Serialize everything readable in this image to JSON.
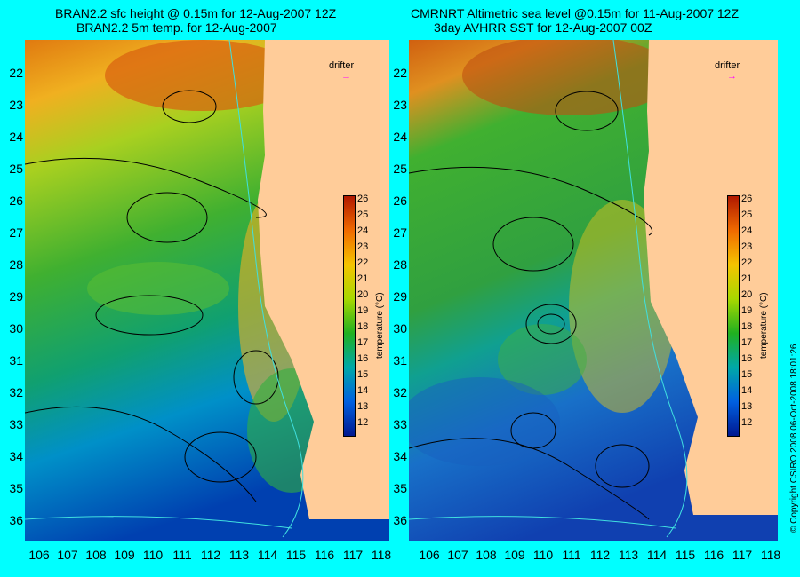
{
  "left": {
    "title_line1": "BRAN2.2 sfc height @ 0.15m for 12-Aug-2007 12Z",
    "title_line2": "BRAN2.2 5m temp. for 12-Aug-2007",
    "drifter_label": "drifter"
  },
  "right": {
    "title_line1": "CMRNRT Altimetric sea level  @0.15m  for 11-Aug-2007 12Z",
    "title_line2": "3day AVHRR SST for 12-Aug-2007 00Z",
    "drifter_label": "drifter"
  },
  "lat_labels": [
    "22",
    "23",
    "24",
    "25",
    "26",
    "27",
    "28",
    "29",
    "30",
    "31",
    "32",
    "33",
    "34",
    "35",
    "36"
  ],
  "lon_labels": [
    "106",
    "107",
    "108",
    "109",
    "110",
    "111",
    "112",
    "113",
    "114",
    "115",
    "116",
    "117",
    "118"
  ],
  "colorbar": {
    "ticks": [
      "26",
      "25",
      "24",
      "23",
      "22",
      "21",
      "20",
      "19",
      "18",
      "17",
      "16",
      "15",
      "14",
      "13",
      "12"
    ],
    "title": "temperature (°C)",
    "colors": [
      "#b01800",
      "#d83a00",
      "#f06a00",
      "#f5a000",
      "#f5c400",
      "#d9d400",
      "#a8d800",
      "#60c800",
      "#20b020",
      "#00a058",
      "#00a8a8",
      "#0090d0",
      "#0060e0",
      "#0030c0",
      "#001890"
    ]
  },
  "credit": "© Copyright CSIRO 2008   06-Oct-2008 18:01:26",
  "colors": {
    "background": "#00ffff",
    "land": "#ffcc99",
    "drifter": "#ff00ff"
  }
}
